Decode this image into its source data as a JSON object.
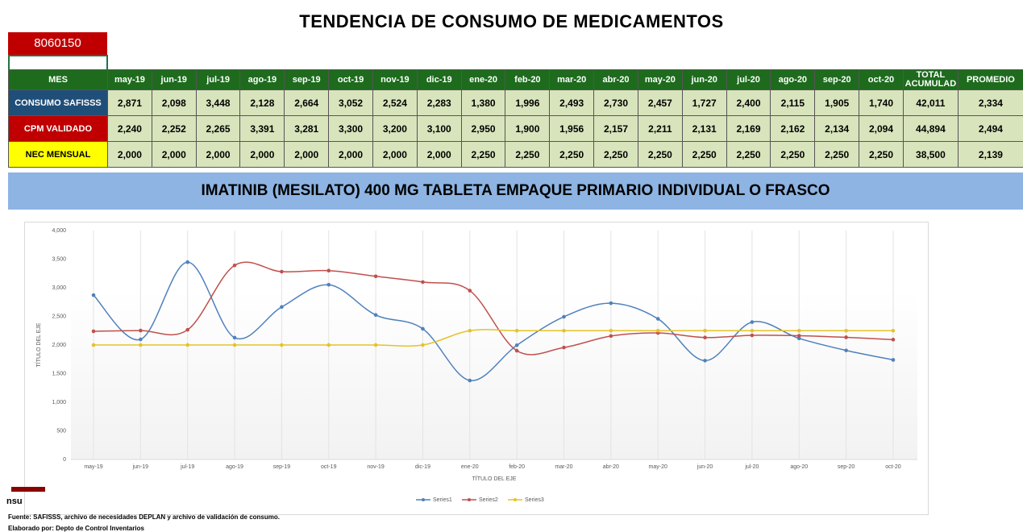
{
  "header": {
    "title": "TENDENCIA DE CONSUMO DE MEDICAMENTOS",
    "code": "8060150"
  },
  "table": {
    "columns": [
      "MES",
      "may-19",
      "jun-19",
      "jul-19",
      "ago-19",
      "sep-19",
      "oct-19",
      "nov-19",
      "dic-19",
      "ene-20",
      "feb-20",
      "mar-20",
      "abr-20",
      "may-20",
      "jun-20",
      "jul-20",
      "ago-20",
      "sep-20",
      "oct-20",
      "TOTAL ACUMULAD",
      "PROMEDIO"
    ],
    "rows": [
      {
        "label": "CONSUMO SAFISSS",
        "cells": [
          "2,871",
          "2,098",
          "3,448",
          "2,128",
          "2,664",
          "3,052",
          "2,524",
          "2,283",
          "1,380",
          "1,996",
          "2,493",
          "2,730",
          "2,457",
          "1,727",
          "2,400",
          "2,115",
          "1,905",
          "1,740",
          "42,011",
          "2,334"
        ]
      },
      {
        "label": "CPM VALIDADO",
        "cells": [
          "2,240",
          "2,252",
          "2,265",
          "3,391",
          "3,281",
          "3,300",
          "3,200",
          "3,100",
          "2,950",
          "1,900",
          "1,956",
          "2,157",
          "2,211",
          "2,131",
          "2,169",
          "2,162",
          "2,134",
          "2,094",
          "44,894",
          "2,494"
        ]
      },
      {
        "label": "NEC  MENSUAL",
        "cells": [
          "2,000",
          "2,000",
          "2,000",
          "2,000",
          "2,000",
          "2,000",
          "2,000",
          "2,000",
          "2,250",
          "2,250",
          "2,250",
          "2,250",
          "2,250",
          "2,250",
          "2,250",
          "2,250",
          "2,250",
          "2,250",
          "38,500",
          "2,139"
        ]
      }
    ]
  },
  "product": "IMATINIB (MESILATO) 400 MG TABLETA EMPAQUE PRIMARIO INDIVIDUAL O FRASCO",
  "chart_data": {
    "type": "line",
    "xlabel": "TÍTULO DEL EJE",
    "ylabel": "TÍTULO DEL EJE",
    "categories": [
      "may-19",
      "jun-19",
      "jul-19",
      "ago-19",
      "sep-19",
      "oct-19",
      "nov-19",
      "dic-19",
      "ene-20",
      "feb-20",
      "mar-20",
      "abr-20",
      "may-20",
      "jun-20",
      "jul-20",
      "ago-20",
      "sep-20",
      "oct-20"
    ],
    "series": [
      {
        "name": "Series1",
        "color": "#4f81bd",
        "values": [
          2871,
          2098,
          3448,
          2128,
          2664,
          3052,
          2524,
          2283,
          1380,
          1996,
          2493,
          2730,
          2457,
          1727,
          2400,
          2115,
          1905,
          1740
        ]
      },
      {
        "name": "Series2",
        "color": "#c0504d",
        "values": [
          2240,
          2252,
          2265,
          3391,
          3281,
          3300,
          3200,
          3100,
          2950,
          1900,
          1956,
          2157,
          2211,
          2131,
          2169,
          2162,
          2134,
          2094
        ]
      },
      {
        "name": "Series3",
        "color": "#e6c229",
        "values": [
          2000,
          2000,
          2000,
          2000,
          2000,
          2000,
          2000,
          2000,
          2250,
          2250,
          2250,
          2250,
          2250,
          2250,
          2250,
          2250,
          2250,
          2250
        ]
      }
    ],
    "ylim": [
      0,
      4000
    ],
    "yticks": [
      0,
      500,
      {
        "value": 1000,
        "label": "1,000"
      },
      {
        "value": 1500,
        "label": "1,500"
      },
      {
        "value": 2000,
        "label": "2,000"
      },
      {
        "value": 2500,
        "label": "2,500"
      },
      {
        "value": 3000,
        "label": "3,000"
      },
      {
        "value": 3500,
        "label": "3,500"
      },
      {
        "value": 4000,
        "label": "4,000"
      }
    ],
    "grid": true,
    "legend": "bottom"
  },
  "footer": {
    "fragment": "nsu",
    "source": "Fuente: SAFISSS, archivo de necesidades DEPLAN y archivo de validación de consumo.",
    "author": "Elaborado por: Depto de Control Inventarios"
  }
}
